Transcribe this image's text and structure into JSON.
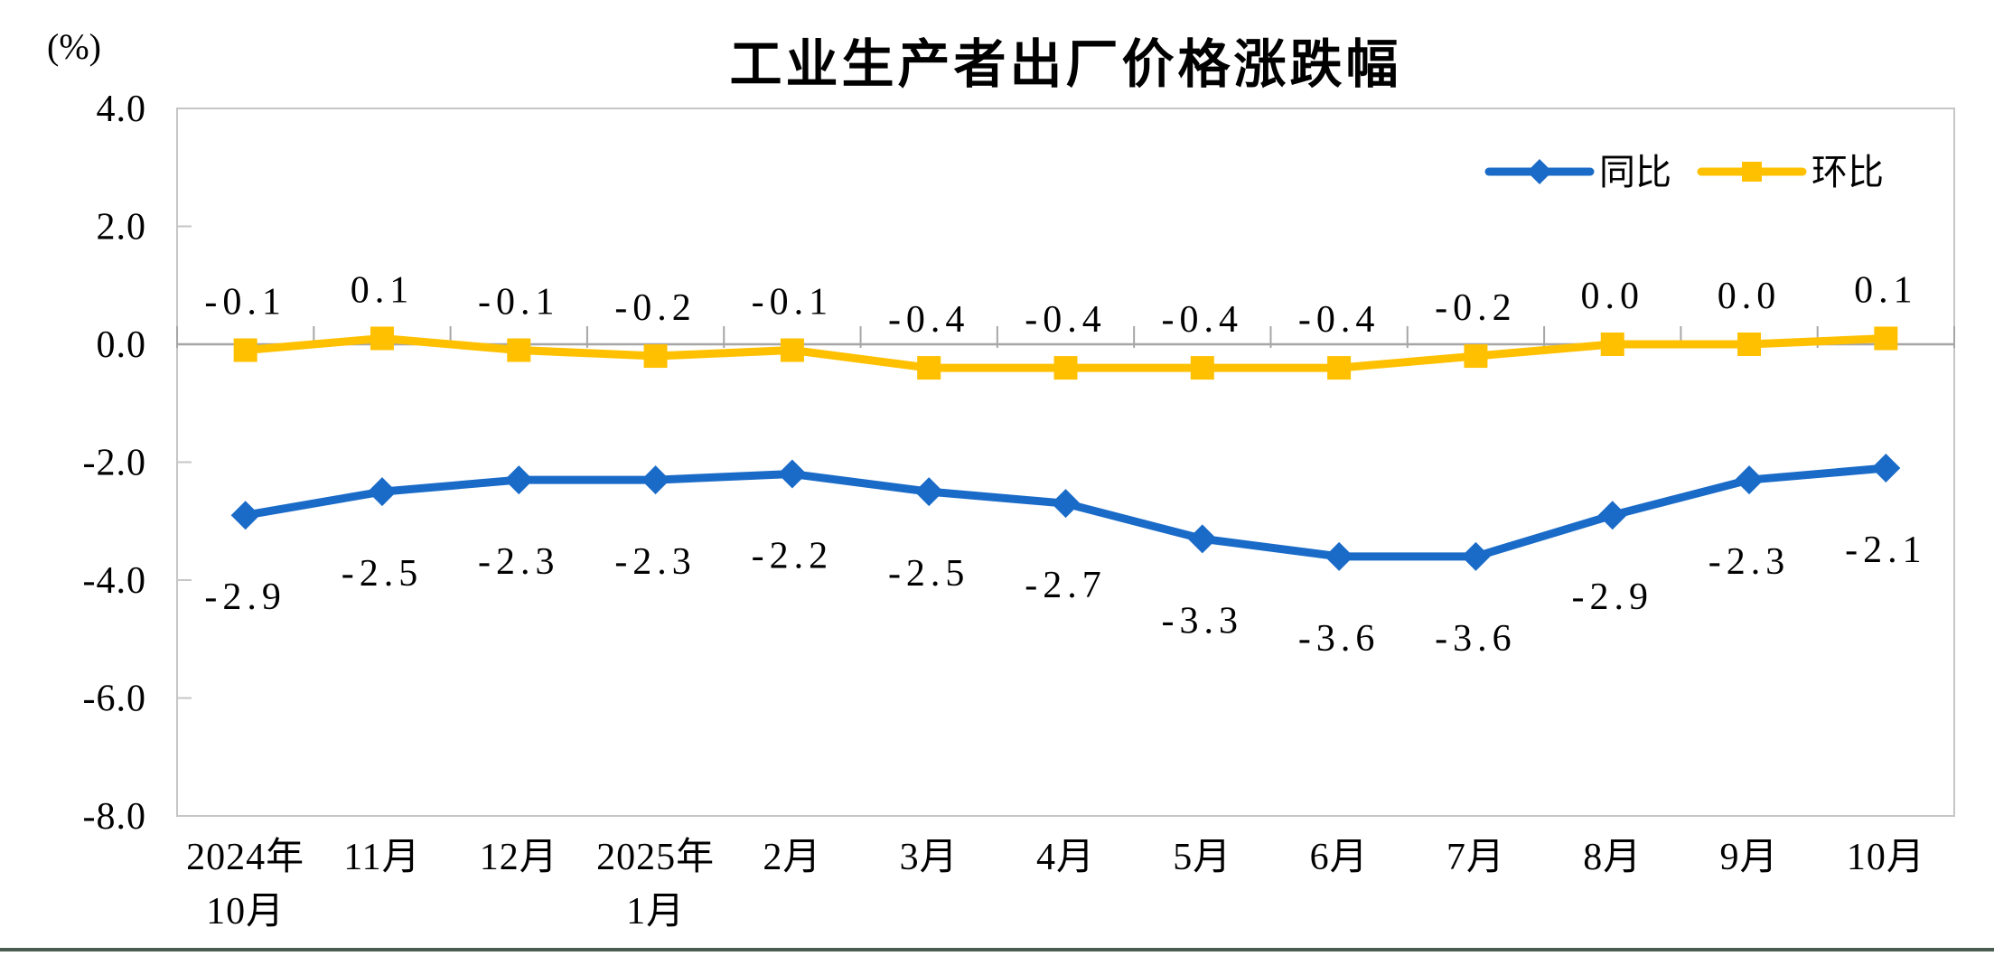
{
  "page": {
    "footer_bar_color": "#4a5b50"
  },
  "chart_data": {
    "type": "line",
    "title": "工业生产者出厂价格涨跌幅",
    "unit_label": "(%)",
    "categories": [
      [
        "2024年",
        "10月"
      ],
      [
        "11月"
      ],
      [
        "12月"
      ],
      [
        "2025年",
        "1月"
      ],
      [
        "2月"
      ],
      [
        "3月"
      ],
      [
        "4月"
      ],
      [
        "5月"
      ],
      [
        "6月"
      ],
      [
        "7月"
      ],
      [
        "8月"
      ],
      [
        "9月"
      ],
      [
        "10月"
      ]
    ],
    "series": [
      {
        "key": "yoy",
        "name": "同比",
        "color": "#1A6BC8",
        "marker": "diamond",
        "label_side": "below",
        "values": [
          -2.9,
          -2.5,
          -2.3,
          -2.3,
          -2.2,
          -2.5,
          -2.7,
          -3.3,
          -3.6,
          -3.6,
          -2.9,
          -2.3,
          -2.1
        ],
        "labels": [
          "-2.9",
          "-2.5",
          "-2.3",
          "-2.3",
          "-2.2",
          "-2.5",
          "-2.7",
          "-3.3",
          "-3.6",
          "-3.6",
          "-2.9",
          "-2.3",
          "-2.1"
        ]
      },
      {
        "key": "mom",
        "name": "环比",
        "color": "#FFC000",
        "marker": "square",
        "label_side": "above",
        "values": [
          -0.1,
          0.1,
          -0.1,
          -0.2,
          -0.1,
          -0.4,
          -0.4,
          -0.4,
          -0.4,
          -0.2,
          0.0,
          0.0,
          0.1
        ],
        "labels": [
          "-0.1",
          "0.1",
          "-0.1",
          "-0.2",
          "-0.1",
          "-0.4",
          "-0.4",
          "-0.4",
          "-0.4",
          "-0.2",
          "0.0",
          "0.0",
          "0.1"
        ]
      }
    ],
    "ylim": [
      -8,
      4
    ],
    "yticks": [
      "4.0",
      "2.0",
      "0.0",
      "-2.0",
      "-4.0",
      "-6.0",
      "-8.0"
    ],
    "grid": "zero-line-only",
    "legend_position": "top-right",
    "axis_color": "#c6c6c6",
    "zero_line_color": "#a6a6a6",
    "text_color": "#000000"
  }
}
